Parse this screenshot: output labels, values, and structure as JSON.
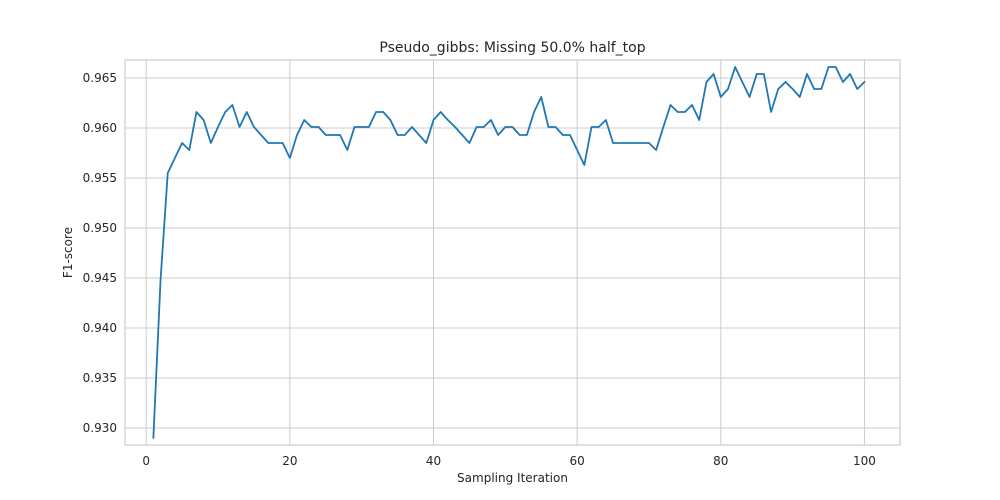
{
  "chart_data": {
    "type": "line",
    "title": "Pseudo_gibbs: Missing 50.0% half_top",
    "xlabel": "Sampling Iteration",
    "ylabel": "F1-score",
    "xlim": [
      -2.95,
      104.95
    ],
    "ylim": [
      0.9283,
      0.9668
    ],
    "xticks": [
      0,
      20,
      40,
      60,
      80,
      100
    ],
    "yticks": [
      0.93,
      0.935,
      0.94,
      0.945,
      0.95,
      0.955,
      0.96,
      0.965
    ],
    "grid": true,
    "line_color": "#1f77b4",
    "series": [
      {
        "x": [
          1,
          2,
          3,
          4,
          5,
          6,
          7,
          8,
          9,
          10,
          11,
          12,
          13,
          14,
          15,
          16,
          17,
          18,
          19,
          20,
          21,
          22,
          23,
          24,
          25,
          26,
          27,
          28,
          29,
          30,
          31,
          32,
          33,
          34,
          35,
          36,
          37,
          38,
          39,
          40,
          41,
          42,
          43,
          44,
          45,
          46,
          47,
          48,
          49,
          50,
          51,
          52,
          53,
          54,
          55,
          56,
          57,
          58,
          59,
          60,
          61,
          62,
          63,
          64,
          65,
          66,
          67,
          68,
          69,
          70,
          71,
          72,
          73,
          74,
          75,
          76,
          77,
          78,
          79,
          80,
          81,
          82,
          83,
          84,
          85,
          86,
          87,
          88,
          89,
          90,
          91,
          92,
          93,
          94,
          95,
          96,
          97,
          98,
          99,
          100
        ],
        "values": [
          0.929,
          0.9448,
          0.9555,
          0.957,
          0.9585,
          0.9578,
          0.9616,
          0.9608,
          0.9585,
          0.9601,
          0.9616,
          0.9623,
          0.9601,
          0.9616,
          0.9601,
          0.9593,
          0.9585,
          0.9585,
          0.9585,
          0.957,
          0.9593,
          0.9608,
          0.9601,
          0.9601,
          0.9593,
          0.9593,
          0.9593,
          0.9578,
          0.9601,
          0.9601,
          0.9601,
          0.9616,
          0.9616,
          0.9608,
          0.9593,
          0.9593,
          0.9601,
          0.9593,
          0.9585,
          0.9608,
          0.9616,
          0.9608,
          0.9601,
          0.9593,
          0.9585,
          0.9601,
          0.9601,
          0.9608,
          0.9593,
          0.9601,
          0.9601,
          0.9593,
          0.9593,
          0.9616,
          0.9631,
          0.9601,
          0.9601,
          0.9593,
          0.9593,
          0.9578,
          0.9563,
          0.9601,
          0.9601,
          0.9608,
          0.9585,
          0.9585,
          0.9585,
          0.9585,
          0.9585,
          0.9585,
          0.9578,
          0.9601,
          0.9623,
          0.9616,
          0.9616,
          0.9623,
          0.9608,
          0.9646,
          0.9654,
          0.9631,
          0.9639,
          0.9661,
          0.9646,
          0.9631,
          0.9654,
          0.9654,
          0.9616,
          0.9639,
          0.9646,
          0.9639,
          0.9631,
          0.9654,
          0.9639,
          0.9639,
          0.9661,
          0.9661,
          0.9646,
          0.9654,
          0.9639,
          0.9646
        ]
      }
    ]
  }
}
